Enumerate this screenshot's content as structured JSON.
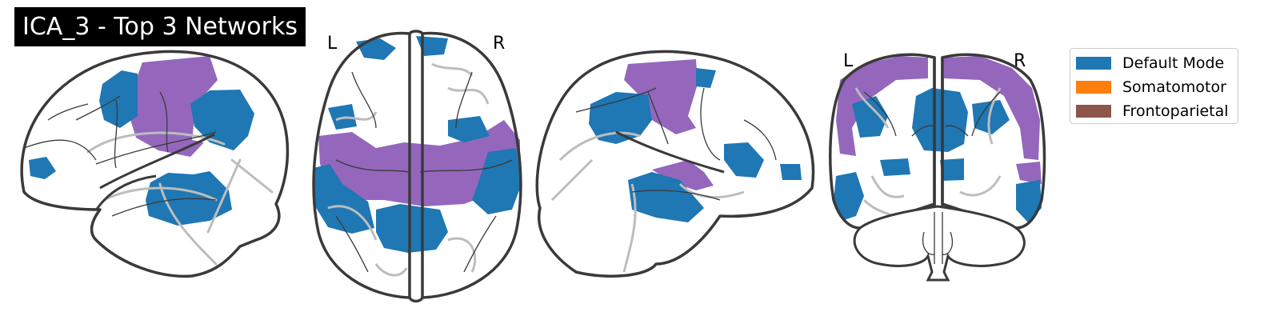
{
  "figure": {
    "title": "ICA_3 - Top 3 Networks",
    "hemisphere_labels": {
      "axial_left": "L",
      "axial_right": "R",
      "coronal_left": "L",
      "coronal_right": "R"
    }
  },
  "legend": {
    "items": [
      {
        "label": "Default Mode",
        "color": "#1f77b4"
      },
      {
        "label": "Somatomotor",
        "color": "#ff7f0e"
      },
      {
        "label": "Frontoparietal",
        "color": "#8c564b"
      }
    ]
  },
  "colors": {
    "default_mode": "#1f77b4",
    "overlay_purple": "#9467bd",
    "outline": "#3a3a3a",
    "sulci_grey": "#bdbdbd",
    "title_bg": "#000000"
  }
}
